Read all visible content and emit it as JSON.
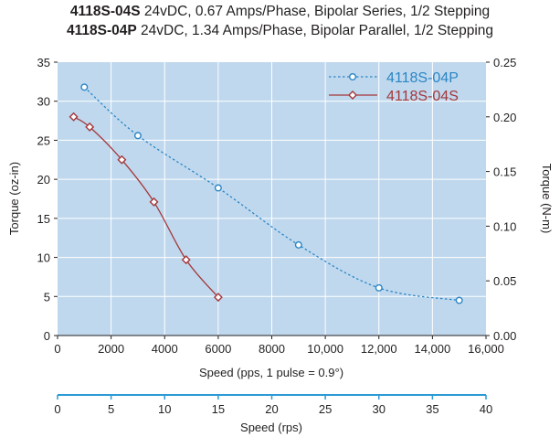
{
  "titles": [
    {
      "model": "4118S-04S",
      "spec": " 24vDC, 0.67 Amps/Phase, Bipolar Series, 1/2 Stepping"
    },
    {
      "model": "4118S-04P",
      "spec": " 24vDC, 1.34 Amps/Phase, Bipolar Parallel, 1/2 Stepping"
    }
  ],
  "colors": {
    "plot_background": "#bfd8ee",
    "grid": "#ffffff",
    "series_p": "#2b86c5",
    "series_s": "#a4373a",
    "rps_axis": "#2b9ad6"
  },
  "chart_data": {
    "type": "line",
    "xlabel": "Speed (pps, 1 pulse = 0.9°)",
    "ylabel_left": "Torque (oz-in)",
    "ylabel_right": "Torque (N-m)",
    "xlabel_secondary": "Speed (rps)",
    "xlim": [
      0,
      16000
    ],
    "ylim_left": [
      0,
      35
    ],
    "ylim_right": [
      0,
      0.25
    ],
    "x_secondary_lim": [
      0,
      40
    ],
    "x_ticks": [
      "0",
      "2000",
      "4000",
      "6000",
      "8000",
      "10,000",
      "12,000",
      "14,000",
      "16,000"
    ],
    "y_left_ticks": [
      "0",
      "5",
      "10",
      "15",
      "20",
      "25",
      "30",
      "35"
    ],
    "y_right_ticks": [
      "0.00",
      "0.05",
      "0.10",
      "0.15",
      "0.20",
      "0.25"
    ],
    "x_secondary_ticks": [
      "0",
      "5",
      "10",
      "15",
      "20",
      "25",
      "30",
      "35",
      "40"
    ],
    "grid": true,
    "legend_position": "top-right",
    "series": [
      {
        "name": "4118S-04P",
        "style": "dotted",
        "marker": "circle",
        "color": "#2b86c5",
        "points": [
          [
            1000,
            31.8
          ],
          [
            3000,
            25.6
          ],
          [
            6000,
            18.9
          ],
          [
            9000,
            11.6
          ],
          [
            12000,
            6.1
          ],
          [
            15000,
            4.5
          ]
        ]
      },
      {
        "name": "4118S-04S",
        "style": "solid",
        "marker": "diamond",
        "color": "#a4373a",
        "points": [
          [
            600,
            28.0
          ],
          [
            1200,
            26.7
          ],
          [
            2400,
            22.5
          ],
          [
            3600,
            17.1
          ],
          [
            4800,
            9.7
          ],
          [
            6000,
            4.9
          ]
        ]
      }
    ]
  }
}
